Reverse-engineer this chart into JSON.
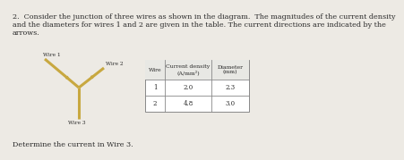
{
  "title_line1": "2.  Consider the junction of three wires as shown in the diagram.  The magnitudes of the current density",
  "title_line2": "and the diameters for wires 1 and 2 are given in the table. The current directions are indicated by the",
  "title_line3": "arrows.",
  "wire_labels": [
    "Wire 1",
    "Wire 2",
    "Wire 3"
  ],
  "table_headers": [
    "Wire",
    "Current density\n(A/mm²)",
    "Diameter\n(mm)"
  ],
  "table_col0": [
    "1",
    "2"
  ],
  "table_col1": [
    "2.0",
    "4.8"
  ],
  "table_col2": [
    "2.3",
    "3.0"
  ],
  "footer": "Determine the current in Wire 3.",
  "bg_color": "#edeae4",
  "wire_color": "#c8a840",
  "text_color": "#2a2a2a",
  "table_border_color": "#888888",
  "table_bg": "#f5f5f2"
}
